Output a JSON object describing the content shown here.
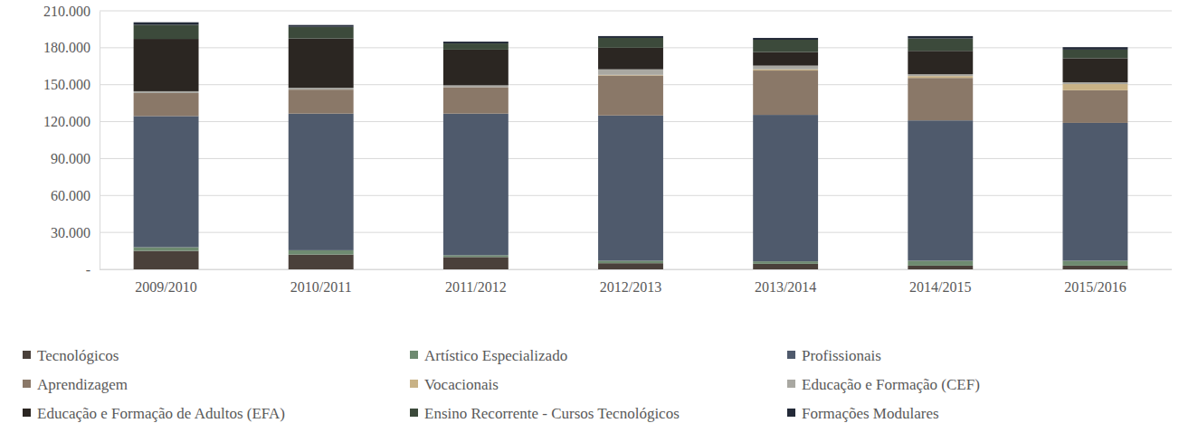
{
  "chart_data": {
    "type": "bar",
    "stacked": true,
    "grid": true,
    "legend": "bottom",
    "categories": [
      "2009/2010",
      "2010/2011",
      "2011/2012",
      "2012/2013",
      "2013/2014",
      "2014/2015",
      "2015/2016"
    ],
    "ylim": [
      0,
      210000
    ],
    "yticks": [
      {
        "value": 0,
        "label": "-"
      },
      {
        "value": 30000,
        "label": "30.000"
      },
      {
        "value": 60000,
        "label": "60.000"
      },
      {
        "value": 90000,
        "label": "90.000"
      },
      {
        "value": 120000,
        "label": "120.000"
      },
      {
        "value": 150000,
        "label": "150.000"
      },
      {
        "value": 180000,
        "label": "180.000"
      },
      {
        "value": 210000,
        "label": "210.000"
      }
    ],
    "series": [
      {
        "name": "Tecnológicos",
        "color": "#4a403a",
        "values": [
          15000,
          12000,
          10000,
          5000,
          4500,
          3000,
          3000
        ]
      },
      {
        "name": "Artístico Especializado",
        "color": "#6e8a70",
        "values": [
          3000,
          3500,
          1500,
          2000,
          2000,
          4000,
          4000
        ]
      },
      {
        "name": "Profissionais",
        "color": "#4f5a6c",
        "values": [
          106500,
          111000,
          115000,
          118000,
          119000,
          114000,
          112000
        ]
      },
      {
        "name": "Aprendizagem",
        "color": "#8a7868",
        "values": [
          18700,
          19500,
          21500,
          32500,
          36000,
          34500,
          26500
        ]
      },
      {
        "name": "Vocacionais",
        "color": "#c8b286",
        "values": [
          0,
          0,
          0,
          500,
          1000,
          1500,
          5000
        ]
      },
      {
        "name": "Educação e Formação (CEF)",
        "color": "#a9a8a2",
        "values": [
          1500,
          1500,
          1500,
          4500,
          3000,
          1500,
          1500
        ]
      },
      {
        "name": "Educação e Formação de Adultos (EFA)",
        "color": "#2b2622",
        "values": [
          42500,
          40000,
          29000,
          17500,
          11000,
          19000,
          19500
        ]
      },
      {
        "name": "Ensino Recorrente - Cursos Tecnológicos",
        "color": "#3c4a3b",
        "values": [
          11500,
          9500,
          5000,
          8000,
          10000,
          10000,
          7000
        ]
      },
      {
        "name": "Formações Modulares",
        "color": "#232a38",
        "values": [
          2000,
          1500,
          1500,
          1500,
          1500,
          2000,
          2000
        ]
      }
    ]
  }
}
